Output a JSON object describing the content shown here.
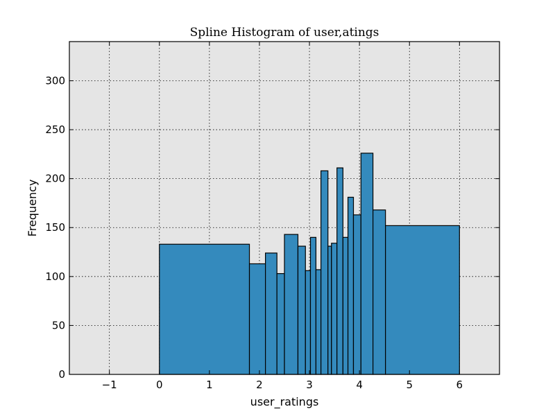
{
  "chart_data": {
    "type": "bar",
    "title": "Spline Histogram of user,atings",
    "xlabel": "user_ratings",
    "ylabel": "Frequency",
    "xlim": [
      -1.8,
      6.8
    ],
    "ylim": [
      0,
      340
    ],
    "xticks": [
      -1,
      0,
      1,
      2,
      3,
      4,
      5,
      6
    ],
    "xtick_labels": [
      "−1",
      "0",
      "1",
      "2",
      "3",
      "4",
      "5",
      "6"
    ],
    "yticks": [
      0,
      50,
      100,
      150,
      200,
      250,
      300
    ],
    "ytick_labels": [
      "0",
      "50",
      "100",
      "150",
      "200",
      "250",
      "300"
    ],
    "grid": true,
    "bar_color": "#348abd",
    "background_color": "#e5e5e5",
    "bins": [
      {
        "x0": 0.0,
        "x1": 1.8,
        "value": 133
      },
      {
        "x0": 1.8,
        "x1": 2.12,
        "value": 113
      },
      {
        "x0": 2.12,
        "x1": 2.35,
        "value": 124
      },
      {
        "x0": 2.35,
        "x1": 2.5,
        "value": 103
      },
      {
        "x0": 2.5,
        "x1": 2.77,
        "value": 143
      },
      {
        "x0": 2.77,
        "x1": 2.92,
        "value": 131
      },
      {
        "x0": 2.92,
        "x1": 3.02,
        "value": 106
      },
      {
        "x0": 3.02,
        "x1": 3.13,
        "value": 140
      },
      {
        "x0": 3.13,
        "x1": 3.23,
        "value": 107
      },
      {
        "x0": 3.23,
        "x1": 3.37,
        "value": 208
      },
      {
        "x0": 3.37,
        "x1": 3.44,
        "value": 131
      },
      {
        "x0": 3.44,
        "x1": 3.55,
        "value": 134
      },
      {
        "x0": 3.55,
        "x1": 3.67,
        "value": 211
      },
      {
        "x0": 3.67,
        "x1": 3.77,
        "value": 140
      },
      {
        "x0": 3.77,
        "x1": 3.88,
        "value": 181
      },
      {
        "x0": 3.88,
        "x1": 4.03,
        "value": 163
      },
      {
        "x0": 4.03,
        "x1": 4.27,
        "value": 226
      },
      {
        "x0": 4.27,
        "x1": 4.52,
        "value": 168
      },
      {
        "x0": 4.52,
        "x1": 6.0,
        "value": 152
      }
    ]
  }
}
